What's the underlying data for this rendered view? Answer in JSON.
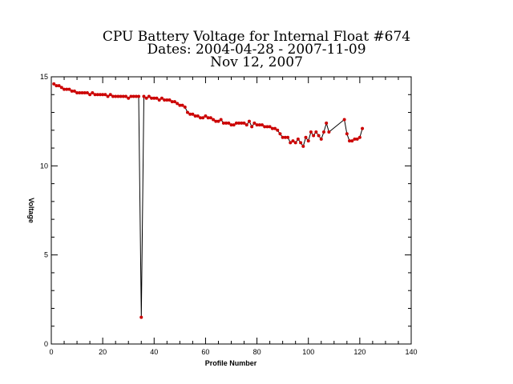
{
  "chart_data": {
    "type": "line",
    "title": "CPU Battery Voltage for Internal Float #674",
    "subtitle": "Dates:  2004-04-28 -  2007-11-09",
    "date_line": "Nov 12, 2007",
    "xlabel": "Profile Number",
    "ylabel": "Voltage",
    "xlim": [
      0,
      140
    ],
    "ylim": [
      0,
      15
    ],
    "xticks": [
      0,
      20,
      40,
      60,
      80,
      100,
      120,
      140
    ],
    "yticks": [
      0,
      5,
      10,
      15
    ],
    "grid": false,
    "line_color": "#000000",
    "marker_color": "#cc0000",
    "series": [
      {
        "x": [
          1,
          2,
          3,
          4,
          5,
          6,
          7,
          8,
          9,
          10,
          11,
          12,
          13,
          14,
          15,
          16,
          17,
          18,
          19,
          20,
          21,
          22,
          23,
          24,
          25,
          26,
          27,
          28,
          29,
          30,
          31,
          32,
          33,
          34,
          35,
          36,
          37,
          38,
          39,
          40,
          41,
          42,
          43,
          44,
          45,
          46,
          47,
          48,
          49,
          50,
          51,
          52,
          53,
          54,
          55,
          56,
          57,
          58,
          59,
          60,
          61,
          62,
          63,
          64,
          65,
          66,
          67,
          68,
          69,
          70,
          71,
          72,
          73,
          74,
          75,
          76,
          77,
          78,
          79,
          80,
          81,
          82,
          83,
          84,
          85,
          86,
          87,
          88,
          89,
          90,
          91,
          92,
          93,
          94,
          95,
          96,
          97,
          98,
          99,
          100,
          101,
          102,
          103,
          104,
          105,
          106,
          107,
          108,
          114,
          115,
          116,
          117,
          118,
          119,
          120,
          121
        ],
        "y": [
          14.6,
          14.5,
          14.5,
          14.4,
          14.3,
          14.3,
          14.3,
          14.2,
          14.2,
          14.1,
          14.1,
          14.1,
          14.1,
          14.1,
          14.0,
          14.1,
          14.0,
          14.0,
          14.0,
          14.0,
          14.0,
          13.9,
          14.0,
          13.9,
          13.9,
          13.9,
          13.9,
          13.9,
          13.9,
          13.8,
          13.9,
          13.9,
          13.9,
          13.9,
          1.5,
          13.9,
          13.8,
          13.9,
          13.8,
          13.8,
          13.8,
          13.7,
          13.8,
          13.7,
          13.7,
          13.7,
          13.6,
          13.6,
          13.5,
          13.4,
          13.4,
          13.3,
          13.0,
          12.9,
          12.9,
          12.8,
          12.8,
          12.7,
          12.7,
          12.8,
          12.7,
          12.7,
          12.6,
          12.5,
          12.5,
          12.6,
          12.4,
          12.4,
          12.4,
          12.3,
          12.3,
          12.4,
          12.4,
          12.4,
          12.4,
          12.3,
          12.5,
          12.2,
          12.4,
          12.3,
          12.3,
          12.3,
          12.2,
          12.2,
          12.2,
          12.1,
          12.1,
          12.0,
          11.8,
          11.6,
          11.6,
          11.6,
          11.3,
          11.4,
          11.3,
          11.5,
          11.3,
          11.1,
          11.6,
          11.4,
          11.9,
          11.7,
          11.9,
          11.7,
          11.5,
          11.9,
          12.4,
          11.9,
          12.6,
          11.8,
          11.4,
          11.4,
          11.5,
          11.5,
          11.6,
          12.1
        ]
      }
    ]
  }
}
